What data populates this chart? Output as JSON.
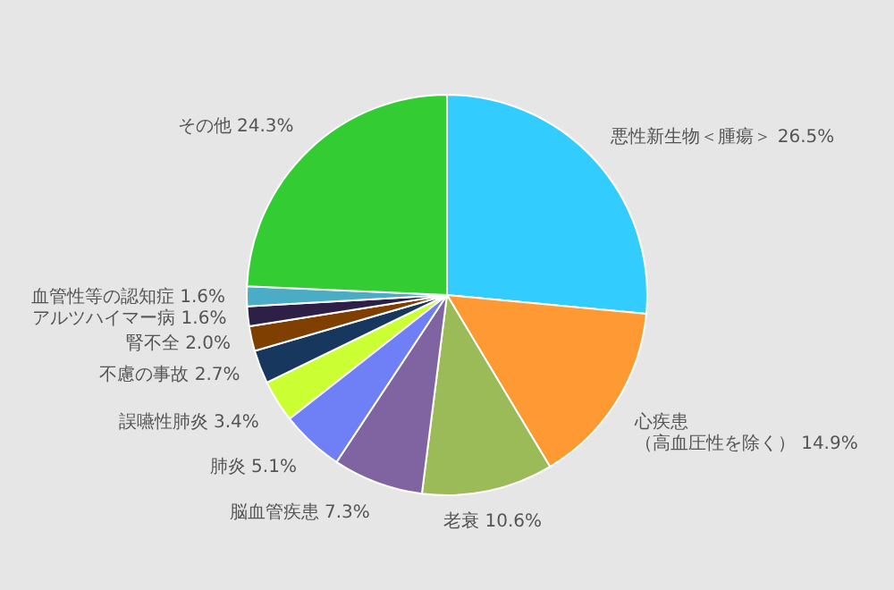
{
  "chart_data": {
    "type": "pie",
    "categories": [
      "悪性新生物＜腫瘍＞",
      "心疾患（高血圧性を除く）",
      "老衰",
      "脳血管疾患",
      "肺炎",
      "誤嚥性肺炎",
      "不慮の事故",
      "腎不全",
      "アルツハイマー病",
      "血管性等の認知症",
      "その他"
    ],
    "values": [
      26.5,
      14.9,
      10.6,
      7.3,
      5.1,
      3.4,
      2.7,
      2.0,
      1.6,
      1.6,
      24.3
    ],
    "value_labels": [
      "26.5%",
      "14.9%",
      "10.6%",
      "7.3%",
      "5.1%",
      "3.4%",
      "2.7%",
      "2.0%",
      "1.6%",
      "1.6%",
      "24.3%"
    ],
    "colors": [
      "#33ccff",
      "#ff9933",
      "#9bbb59",
      "#8064a2",
      "#6f7ff5",
      "#ccff33",
      "#17375e",
      "#7f3f00",
      "#2e1f47",
      "#4bacc6",
      "#33cc33"
    ]
  }
}
